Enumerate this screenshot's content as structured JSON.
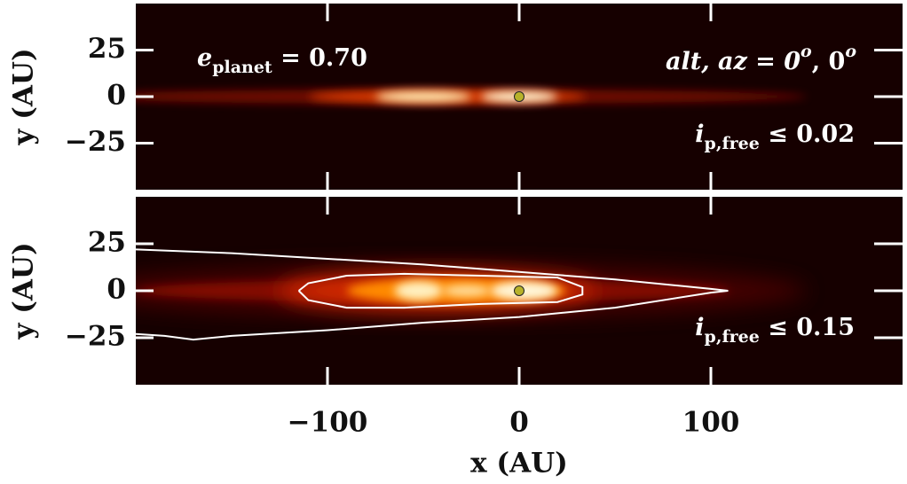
{
  "chart_data": [
    {
      "type": "image",
      "xlabel": "x (AU)",
      "ylabel": "y (AU)",
      "xlim": [
        -200,
        200
      ],
      "ylim": [
        -50,
        50
      ],
      "xticks": [
        -100,
        0,
        100
      ],
      "yticks": [
        25,
        0,
        {
          "value": -25,
          "label": "−25"
        }
      ],
      "planet": {
        "x": 0,
        "y": 0,
        "color": "#b7b22a"
      },
      "annotations": [
        [
          {
            "text": "e"
          },
          {
            "text": "planet",
            "shift": "sub"
          },
          {
            "text": " = 0.70"
          }
        ],
        [
          {
            "text": "alt, az = 0"
          },
          {
            "text": "o",
            "shift": "super"
          },
          {
            "text": ", 0"
          },
          {
            "text": "o",
            "shift": "super"
          }
        ],
        [
          {
            "text": "i"
          },
          {
            "text": "p,free",
            "shift": "sub"
          },
          {
            "text": " ≤ 0.02"
          }
        ]
      ]
    },
    {
      "type": "image",
      "xlabel": "x (AU)",
      "ylabel": "y (AU)",
      "xlim": [
        -200,
        200
      ],
      "ylim": [
        -50,
        50
      ],
      "xticks": [
        {
          "value": -100,
          "label": "−100"
        },
        0,
        100
      ],
      "yticks": [
        25,
        0,
        {
          "value": -25,
          "label": "−25"
        }
      ],
      "planet": {
        "x": 0,
        "y": 0,
        "color": "#b7b22a"
      },
      "contours": [
        {
          "color": "#ffffff",
          "x": [
            -200,
            -150,
            -100,
            -50,
            0,
            50,
            100,
            109,
            100,
            50,
            0,
            -50,
            -100,
            -150,
            -170,
            -185,
            -200
          ],
          "y": [
            22,
            20,
            17,
            14,
            10,
            6,
            1,
            0,
            -1,
            -9,
            -14,
            -17,
            -21,
            -24,
            -26,
            -24,
            -23
          ]
        },
        {
          "color": "#ffffff",
          "x": [
            -115,
            -110,
            -90,
            -60,
            -20,
            20,
            33,
            33,
            20,
            -20,
            -60,
            -90,
            -110,
            -115
          ],
          "y": [
            0,
            4,
            8,
            9,
            8,
            7,
            2,
            -2,
            -6,
            -7,
            -9,
            -9,
            -5,
            0
          ]
        }
      ],
      "annotations": [
        [
          {
            "text": "i"
          },
          {
            "text": "p,free",
            "shift": "sub"
          },
          {
            "text": " ≤ 0.15"
          }
        ]
      ]
    }
  ]
}
